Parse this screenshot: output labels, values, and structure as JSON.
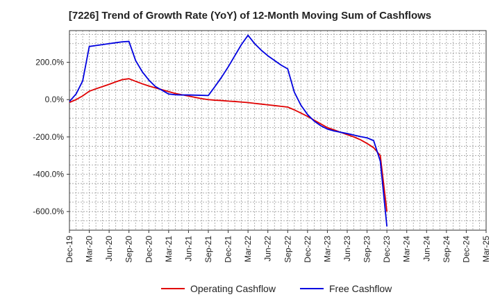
{
  "chart_data": {
    "type": "line",
    "title": "[7226]  Trend of Growth Rate (YoY) of 12-Month Moving Sum of Cashflows",
    "xlabel": "",
    "ylabel": "",
    "categories": [
      "Dec-19",
      "Jan-20",
      "Feb-20",
      "Mar-20",
      "Apr-20",
      "May-20",
      "Jun-20",
      "Jul-20",
      "Aug-20",
      "Sep-20",
      "Oct-20",
      "Nov-20",
      "Dec-20",
      "Jan-21",
      "Feb-21",
      "Mar-21",
      "Apr-21",
      "May-21",
      "Jun-21",
      "Jul-21",
      "Aug-21",
      "Sep-21",
      "Oct-21",
      "Nov-21",
      "Dec-21",
      "Jan-22",
      "Feb-22",
      "Mar-22",
      "Apr-22",
      "May-22",
      "Jun-22",
      "Jul-22",
      "Aug-22",
      "Sep-22",
      "Oct-22",
      "Nov-22",
      "Dec-22",
      "Jan-23",
      "Feb-23",
      "Mar-23",
      "Apr-23",
      "May-23",
      "Jun-23",
      "Jul-23",
      "Aug-23",
      "Sep-23",
      "Oct-23",
      "Nov-23",
      "Dec-23",
      "Jan-24",
      "Feb-24",
      "Mar-24",
      "Apr-24",
      "May-24",
      "Jun-24",
      "Jul-24",
      "Aug-24",
      "Sep-24",
      "Oct-24",
      "Nov-24",
      "Dec-24",
      "Jan-25",
      "Feb-25",
      "Mar-25"
    ],
    "x_tick_labels": [
      "Dec-19",
      "Mar-20",
      "Jun-20",
      "Sep-20",
      "Dec-20",
      "Mar-21",
      "Jun-21",
      "Sep-21",
      "Dec-21",
      "Mar-22",
      "Jun-22",
      "Sep-22",
      "Dec-22",
      "Mar-23",
      "Jun-23",
      "Sep-23",
      "Dec-23",
      "Mar-24",
      "Jun-24",
      "Sep-24",
      "Dec-24",
      "Mar-25"
    ],
    "y_tick_labels": [
      "200.0%",
      "0.0%",
      "-200.0%",
      "-400.0%",
      "-600.0%"
    ],
    "y_ticks": [
      200,
      0,
      -200,
      -400,
      -600
    ],
    "ylim": [
      -700,
      370
    ],
    "grid": true,
    "legend_position": "bottom-center",
    "series": [
      {
        "name": "Operating Cashflow",
        "color": "#e00000",
        "values": [
          -15,
          0,
          20,
          45,
          58,
          70,
          82,
          95,
          107,
          112,
          98,
          85,
          73,
          63,
          53,
          43,
          33,
          26,
          19,
          12,
          5,
          0,
          -3,
          -5,
          -8,
          -10,
          -13,
          -16,
          -20,
          -24,
          -28,
          -32,
          -36,
          -40,
          -55,
          -72,
          -90,
          -110,
          -130,
          -150,
          -162,
          -175,
          -188,
          -200,
          -215,
          -235,
          -258,
          -300,
          -600,
          null,
          null,
          null,
          null,
          null,
          null,
          null,
          null,
          null,
          null,
          null,
          null,
          null,
          null,
          null
        ],
        "values_rendered": [
          -15,
          0,
          20,
          45,
          58,
          70,
          82,
          95,
          107,
          112,
          98,
          85,
          73,
          63,
          53,
          43,
          33,
          26,
          19,
          12,
          5,
          0,
          -3,
          -5,
          -8,
          -10,
          -13,
          -16,
          -20,
          -24,
          -28,
          -32,
          -36,
          -40,
          -55,
          -72,
          -90,
          -110,
          -130,
          -150,
          -162,
          -175,
          -188,
          -200,
          -215,
          -235,
          -258,
          -300,
          -600
        ]
      },
      {
        "name": "Free Cashflow",
        "color": "#0000e0",
        "values": [
          -10,
          30,
          100,
          285,
          290,
          295,
          300,
          305,
          310,
          312,
          210,
          150,
          105,
          70,
          50,
          30,
          26,
          25,
          25,
          24,
          23,
          22,
          70,
          120,
          175,
          235,
          295,
          345,
          300,
          265,
          235,
          210,
          185,
          165,
          40,
          -30,
          -80,
          -115,
          -140,
          -158,
          -168,
          -175,
          -182,
          -190,
          -198,
          -205,
          -220,
          -330,
          -680,
          null,
          null,
          null,
          null,
          null,
          null,
          null,
          null,
          null,
          null,
          null,
          null,
          null,
          null,
          null
        ]
      }
    ]
  }
}
